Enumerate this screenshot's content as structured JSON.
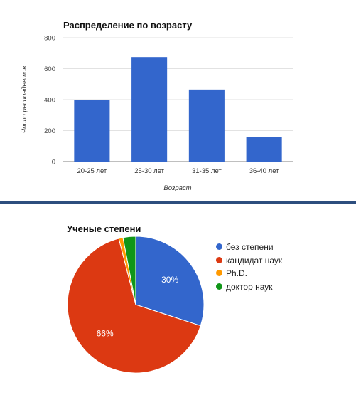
{
  "chart_data": [
    {
      "type": "bar",
      "title": "Распределение по возрасту",
      "xlabel": "Возраст",
      "ylabel": "Число респондентов",
      "categories": [
        "20-25 лет",
        "25-30 лет",
        "31-35 лет",
        "36-40 лет"
      ],
      "values": [
        400,
        675,
        465,
        160
      ],
      "ylim": [
        0,
        800
      ],
      "yticks": [
        "0",
        "200",
        "400",
        "600",
        "800"
      ],
      "grid": true,
      "color": "#3366cc"
    },
    {
      "type": "pie",
      "title": "Ученые степени",
      "labels": [
        "без степени",
        "кандидат наук",
        "Ph.D.",
        "доктор наук"
      ],
      "values": [
        30,
        66,
        1,
        3
      ],
      "colors": [
        "#3366cc",
        "#dc3912",
        "#ff9900",
        "#109618"
      ],
      "data_labels": [
        "30%",
        "66%",
        "",
        ""
      ],
      "legend": "right"
    }
  ]
}
